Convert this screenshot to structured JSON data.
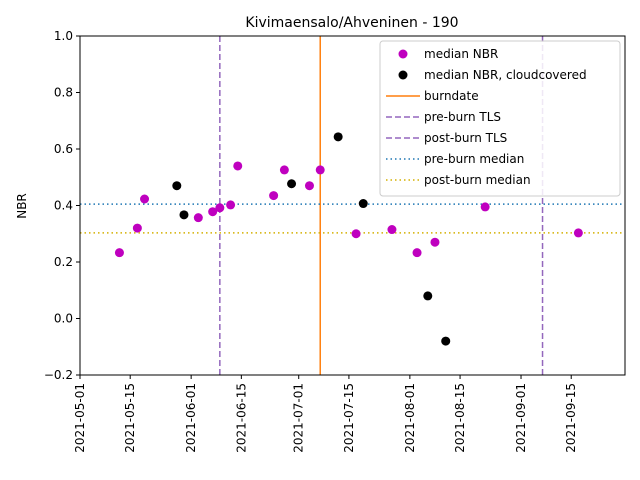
{
  "chart_data": {
    "type": "scatter",
    "title": "Kivimaensalo/Ahveninen - 190",
    "xlabel": "",
    "ylabel": "NBR",
    "xlim": [
      "2021-05-01",
      "2021-09-30"
    ],
    "ylim": [
      -0.2,
      1.0
    ],
    "yticks": [
      -0.2,
      0.0,
      0.2,
      0.4,
      0.6,
      0.8,
      1.0
    ],
    "ytick_labels": [
      "−0.2",
      "0.0",
      "0.2",
      "0.4",
      "0.6",
      "0.8",
      "1.0"
    ],
    "xticks": [
      "2021-05-01",
      "2021-05-15",
      "2021-06-01",
      "2021-06-15",
      "2021-07-01",
      "2021-07-15",
      "2021-08-01",
      "2021-08-15",
      "2021-09-01",
      "2021-09-15"
    ],
    "grid": false,
    "legend_position": "top-right",
    "series": [
      {
        "name": "median NBR",
        "kind": "points",
        "color": "#bf00bf",
        "points": [
          {
            "x": "2021-05-12",
            "y": 0.233
          },
          {
            "x": "2021-05-17",
            "y": 0.32
          },
          {
            "x": "2021-05-19",
            "y": 0.423
          },
          {
            "x": "2021-06-03",
            "y": 0.357
          },
          {
            "x": "2021-06-07",
            "y": 0.378
          },
          {
            "x": "2021-06-09",
            "y": 0.392
          },
          {
            "x": "2021-06-12",
            "y": 0.402
          },
          {
            "x": "2021-06-14",
            "y": 0.54
          },
          {
            "x": "2021-06-24",
            "y": 0.435
          },
          {
            "x": "2021-06-27",
            "y": 0.526
          },
          {
            "x": "2021-07-04",
            "y": 0.47
          },
          {
            "x": "2021-07-07",
            "y": 0.526
          },
          {
            "x": "2021-07-17",
            "y": 0.3
          },
          {
            "x": "2021-07-27",
            "y": 0.315
          },
          {
            "x": "2021-08-03",
            "y": 0.233
          },
          {
            "x": "2021-08-08",
            "y": 0.27
          },
          {
            "x": "2021-08-22",
            "y": 0.395
          },
          {
            "x": "2021-09-17",
            "y": 0.303
          }
        ]
      },
      {
        "name": "median NBR, cloudcovered",
        "kind": "points",
        "color": "#000000",
        "points": [
          {
            "x": "2021-05-28",
            "y": 0.47
          },
          {
            "x": "2021-05-30",
            "y": 0.367
          },
          {
            "x": "2021-06-29",
            "y": 0.477
          },
          {
            "x": "2021-07-12",
            "y": 0.643
          },
          {
            "x": "2021-07-19",
            "y": 0.407
          },
          {
            "x": "2021-08-06",
            "y": 0.08
          },
          {
            "x": "2021-08-11",
            "y": -0.08
          }
        ]
      },
      {
        "name": "burndate",
        "kind": "vline",
        "style": "solid",
        "color": "#ff7f0e",
        "x": "2021-07-07"
      },
      {
        "name": "pre-burn TLS",
        "kind": "vline",
        "style": "dashed",
        "color": "#9467bd",
        "x": "2021-06-09"
      },
      {
        "name": "post-burn TLS",
        "kind": "vline",
        "style": "dashed",
        "color": "#9467bd",
        "x": "2021-09-07"
      },
      {
        "name": "pre-burn median",
        "kind": "hline",
        "style": "dotted",
        "color": "#1f77b4",
        "y": 0.405
      },
      {
        "name": "post-burn median",
        "kind": "hline",
        "style": "dotted",
        "color": "#d4b000",
        "y": 0.303
      }
    ]
  }
}
